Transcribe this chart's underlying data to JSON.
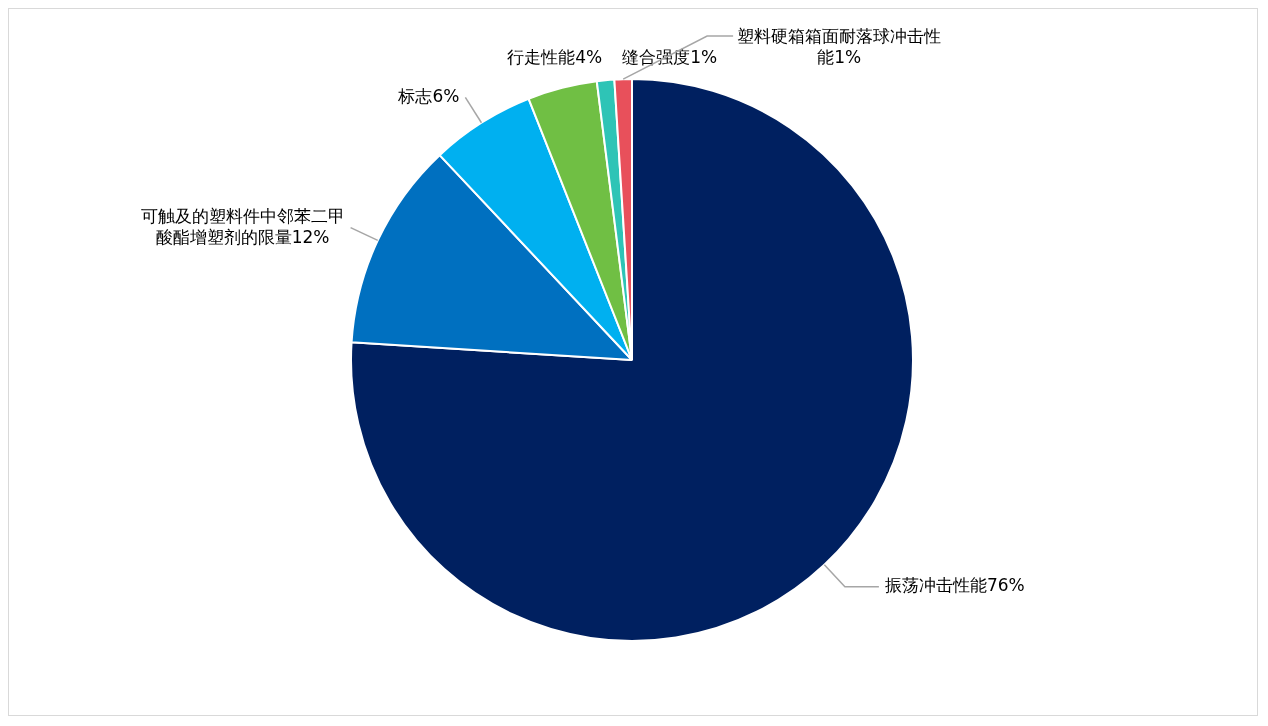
{
  "chart_data": {
    "type": "pie",
    "categories": [
      "振荡冲击性能",
      "可触及的塑料件中邻苯二甲酸酯增塑剂的限量",
      "标志",
      "行走性能",
      "缝合强度",
      "塑料硬箱箱面耐落球冲击性能"
    ],
    "values": [
      76,
      12,
      6,
      4,
      1,
      1
    ],
    "value_labels": [
      "76%",
      "12%",
      "6%",
      "4%",
      "1%",
      "1%"
    ],
    "colors": [
      "#002060",
      "#0070c0",
      "#00b0f0",
      "#70bf44",
      "#2ec4b6",
      "#e8505b"
    ]
  }
}
